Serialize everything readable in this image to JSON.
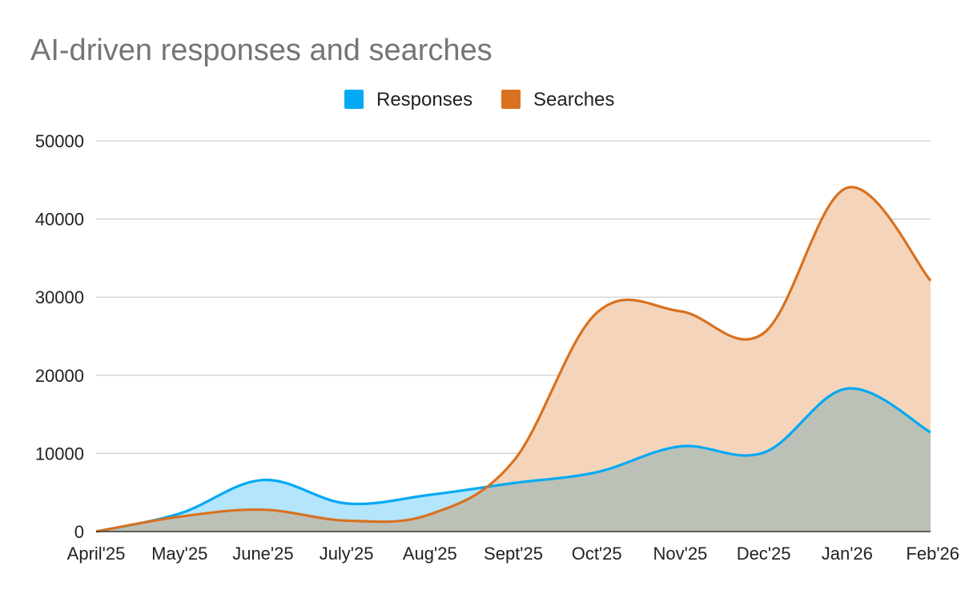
{
  "chart_data": {
    "type": "area",
    "title": "AI-driven responses and searches",
    "xlabel": "",
    "ylabel": "",
    "categories": [
      "April'25",
      "May'25",
      "June'25",
      "July'25",
      "Aug'25",
      "Sept'25",
      "Oct'25",
      "Nov'25",
      "Dec'25",
      "Jan'26",
      "Feb'26"
    ],
    "series": [
      {
        "name": "Responses",
        "color": "#03a9f4",
        "fill": "#b3e5fc",
        "values": [
          0,
          2300,
          6600,
          3600,
          4700,
          6200,
          7600,
          10900,
          10100,
          18300,
          12700
        ]
      },
      {
        "name": "Searches",
        "color": "#d9711f",
        "fill": "#f4d5bc",
        "values": [
          0,
          1900,
          2800,
          1400,
          2200,
          9000,
          28000,
          28200,
          25400,
          44000,
          32100
        ]
      }
    ],
    "ylim": [
      0,
      50000
    ],
    "yticks": [
      0,
      10000,
      20000,
      30000,
      40000,
      50000
    ],
    "grid": true,
    "legend_position": "top",
    "overlap_fill": "#bcc1b8"
  }
}
